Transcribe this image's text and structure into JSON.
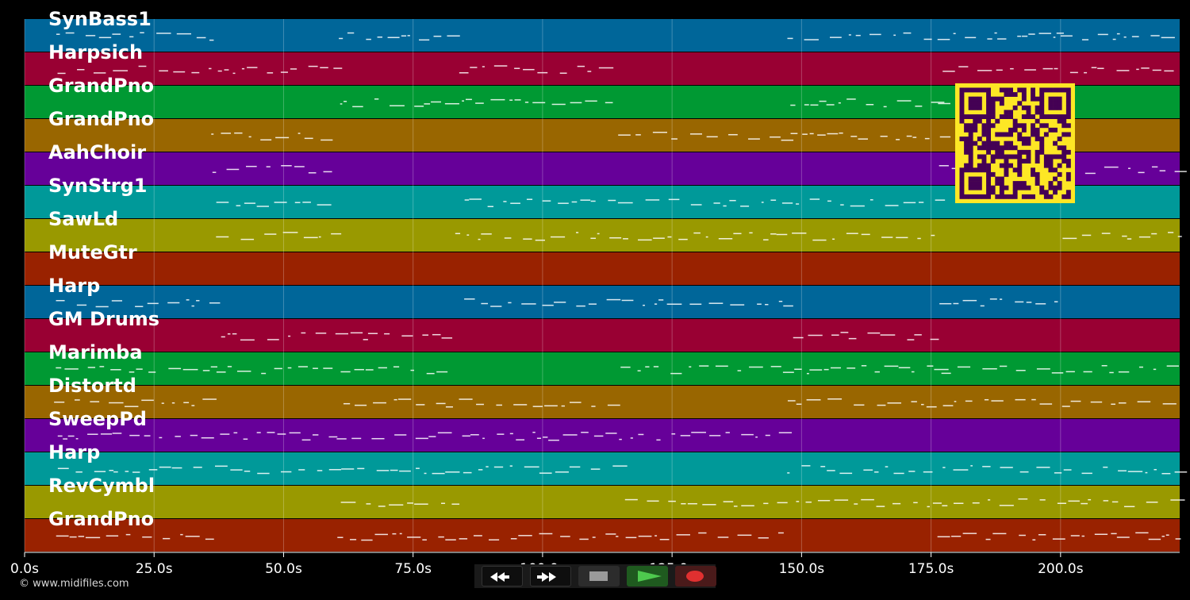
{
  "timeline": {
    "duration": 223,
    "tick_values": [
      0,
      25,
      50,
      75,
      100,
      125,
      150,
      175,
      200
    ],
    "tick_labels": [
      "0.0s",
      "25.0s",
      "50.0s",
      "75.0s",
      "100.0s",
      "125.0s",
      "150.0s",
      "175.0s",
      "200.0s"
    ]
  },
  "tracks": [
    {
      "name": "SynBass1",
      "color": "#006699"
    },
    {
      "name": "Harpsich",
      "color": "#990033"
    },
    {
      "name": "GrandPno",
      "color": "#009933"
    },
    {
      "name": "GrandPno",
      "color": "#996600"
    },
    {
      "name": "AahChoir",
      "color": "#660099"
    },
    {
      "name": "SynStrg1",
      "color": "#009999"
    },
    {
      "name": "SawLd",
      "color": "#999900"
    },
    {
      "name": "MuteGtr",
      "color": "#992200"
    },
    {
      "name": "Harp",
      "color": "#006699"
    },
    {
      "name": "GM Drums",
      "color": "#990033"
    },
    {
      "name": "Marimba",
      "color": "#009933"
    },
    {
      "name": "Distortd",
      "color": "#996600"
    },
    {
      "name": "SweepPd",
      "color": "#660099"
    },
    {
      "name": "Harp",
      "color": "#009999"
    },
    {
      "name": "RevCymbl",
      "color": "#999900"
    },
    {
      "name": "GrandPno",
      "color": "#992200"
    }
  ],
  "footer": {
    "copyright": "© www.midifiles.com"
  },
  "transport": {
    "rewind": "rewind-icon",
    "fast_forward": "fast-forward-icon",
    "stop": "stop-icon",
    "play": "play-icon",
    "record": "record-icon"
  },
  "qr": {
    "fg": "#440154",
    "bg": "#fde725"
  }
}
